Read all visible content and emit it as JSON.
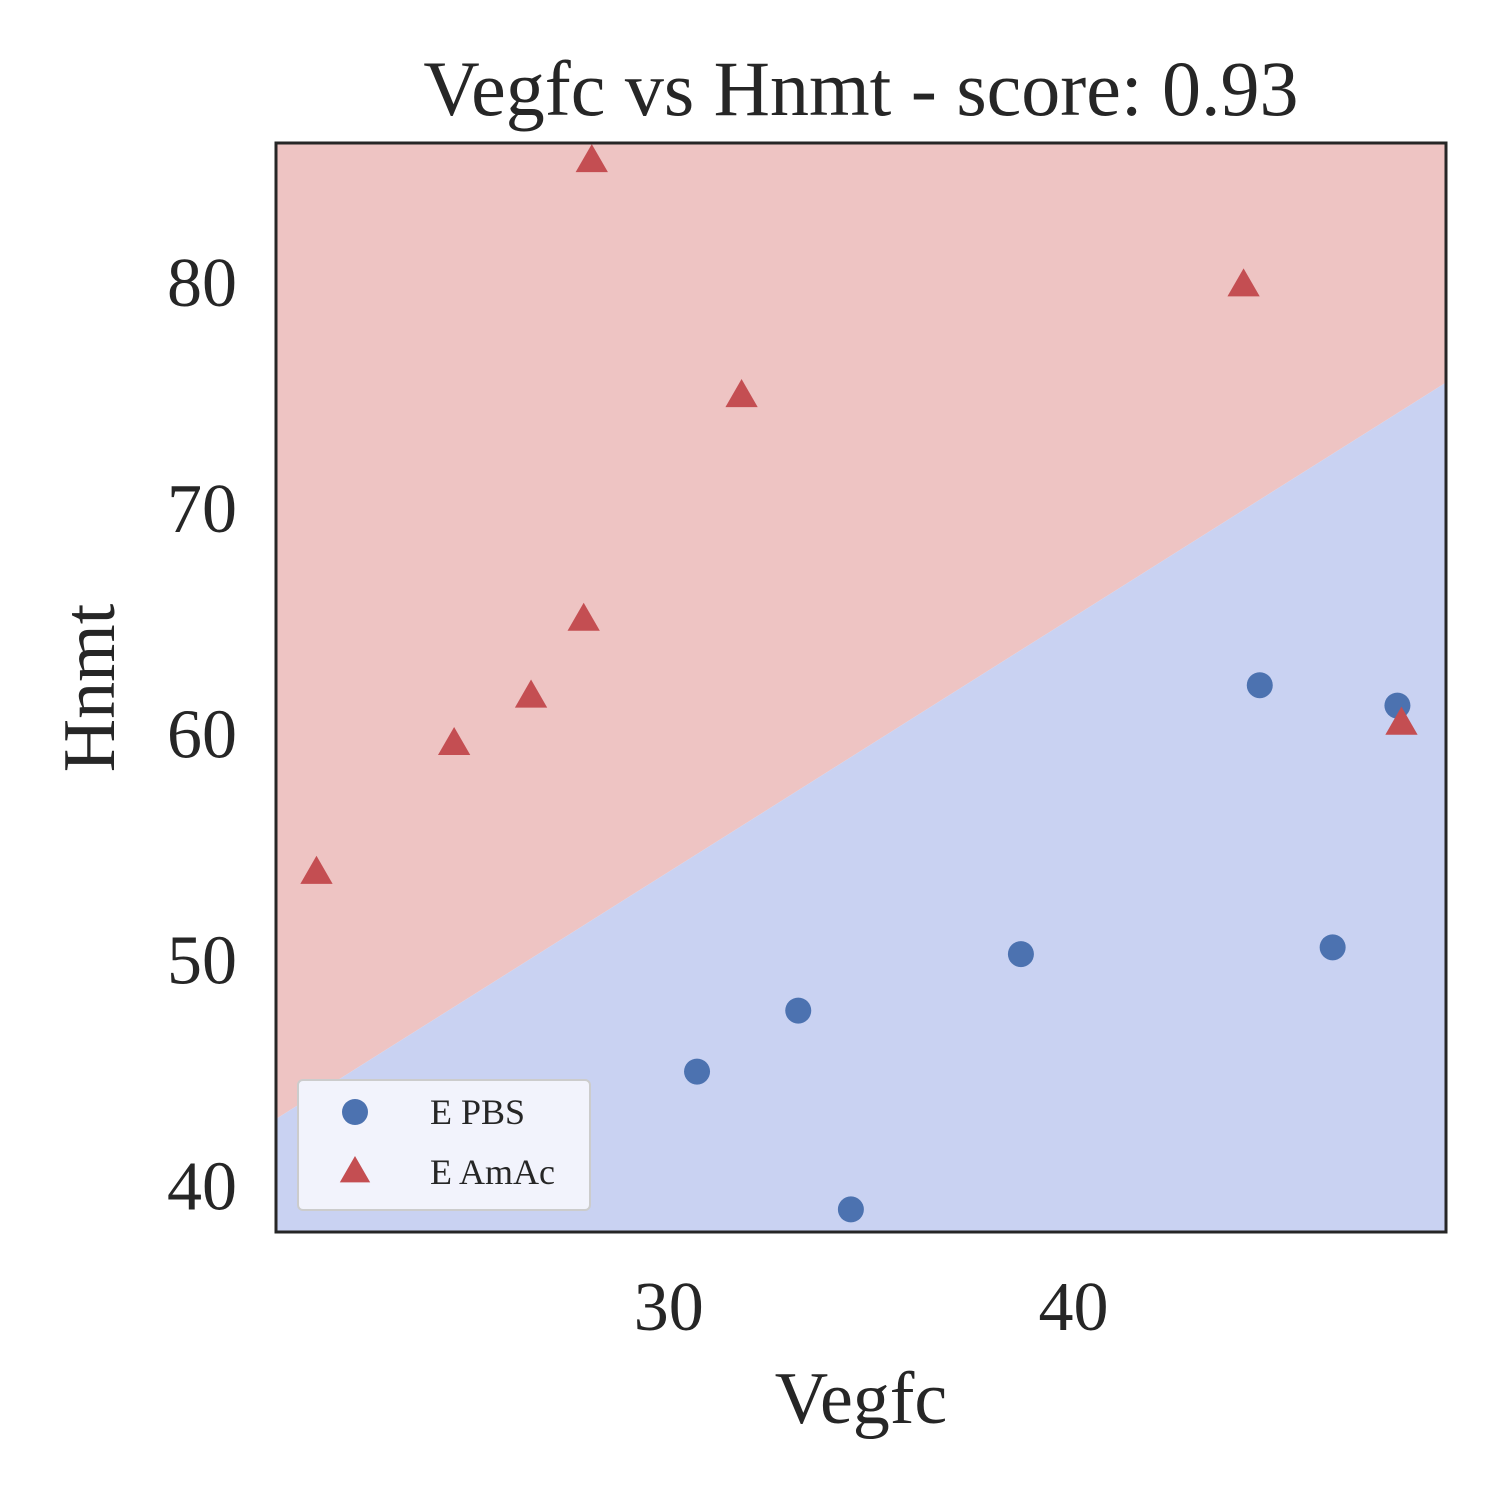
{
  "chart_data": {
    "type": "scatter",
    "title": "Vegfc vs Hnmt - score: 0.93",
    "xlabel": "Vegfc",
    "ylabel": "Hnmt",
    "xlim": [
      20.3,
      49.2
    ],
    "ylim": [
      37.9,
      86.1
    ],
    "xticks": [
      30,
      40
    ],
    "yticks": [
      40,
      50,
      60,
      70,
      80
    ],
    "grid": false,
    "legend_position": "lower-left",
    "decision_boundary": {
      "left": {
        "x": 20.3,
        "y": 42.9
      },
      "right": {
        "x": 49.2,
        "y": 75.5
      },
      "above_region_color": "#eec4c3",
      "below_region_color": "#c9d2f2"
    },
    "series": [
      {
        "name": "E PBS",
        "marker": "circle",
        "color": "#4c72b0",
        "points": [
          {
            "x": 30.7,
            "y": 45.0
          },
          {
            "x": 33.2,
            "y": 47.7
          },
          {
            "x": 34.5,
            "y": 38.9
          },
          {
            "x": 38.7,
            "y": 50.2
          },
          {
            "x": 44.6,
            "y": 62.1
          },
          {
            "x": 46.4,
            "y": 50.5
          },
          {
            "x": 48.0,
            "y": 61.2
          }
        ]
      },
      {
        "name": "E AmAc",
        "marker": "triangle",
        "color": "#c44e52",
        "points": [
          {
            "x": 21.3,
            "y": 53.8
          },
          {
            "x": 24.7,
            "y": 59.5
          },
          {
            "x": 26.6,
            "y": 61.6
          },
          {
            "x": 27.9,
            "y": 65.0
          },
          {
            "x": 28.1,
            "y": 85.3
          },
          {
            "x": 31.8,
            "y": 74.9
          },
          {
            "x": 44.2,
            "y": 79.8
          },
          {
            "x": 48.1,
            "y": 60.4
          }
        ]
      }
    ]
  }
}
